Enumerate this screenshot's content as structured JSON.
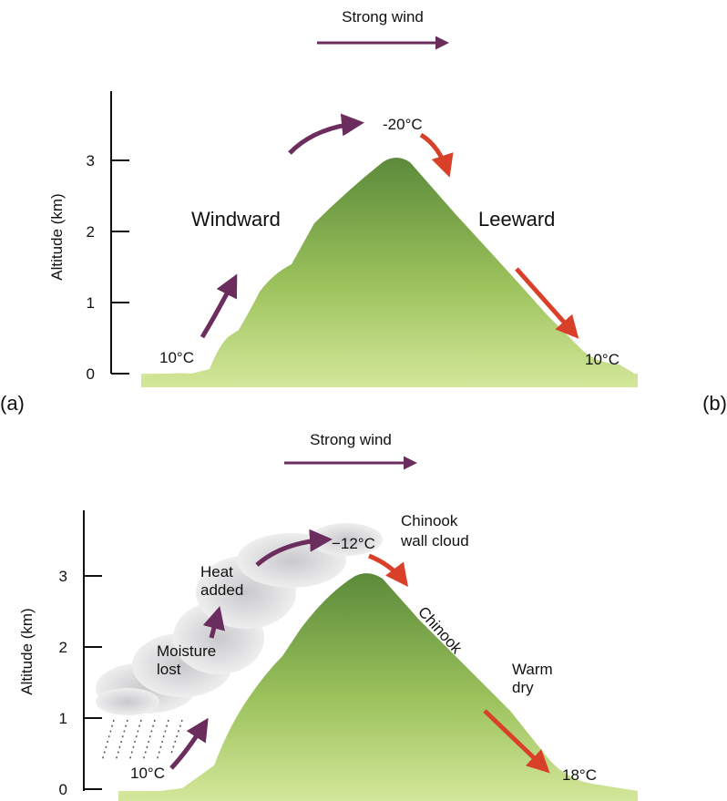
{
  "panels": [
    {
      "label": "(a)",
      "wind": "Strong wind",
      "axis_label": "Altitude (km)",
      "ticks": [
        0,
        1,
        2,
        3
      ],
      "windward": "Windward",
      "leeward": "Leeward",
      "temp_base": "10°C",
      "temp_top": "-20°C",
      "temp_lee": "10°C"
    },
    {
      "label": "(b)",
      "wind": "Strong wind",
      "axis_label": "Altitude (km)",
      "ticks": [
        0,
        1,
        2,
        3
      ],
      "heat": [
        "Heat",
        "added"
      ],
      "moisture": [
        "Moisture",
        "lost"
      ],
      "wall_cloud": [
        "Chinook",
        "wall cloud"
      ],
      "chinook": "Chinook",
      "warm": [
        "Warm",
        "dry"
      ],
      "temp_base": "10°C",
      "temp_top": "−12°C",
      "temp_lee": "18°C"
    }
  ]
}
